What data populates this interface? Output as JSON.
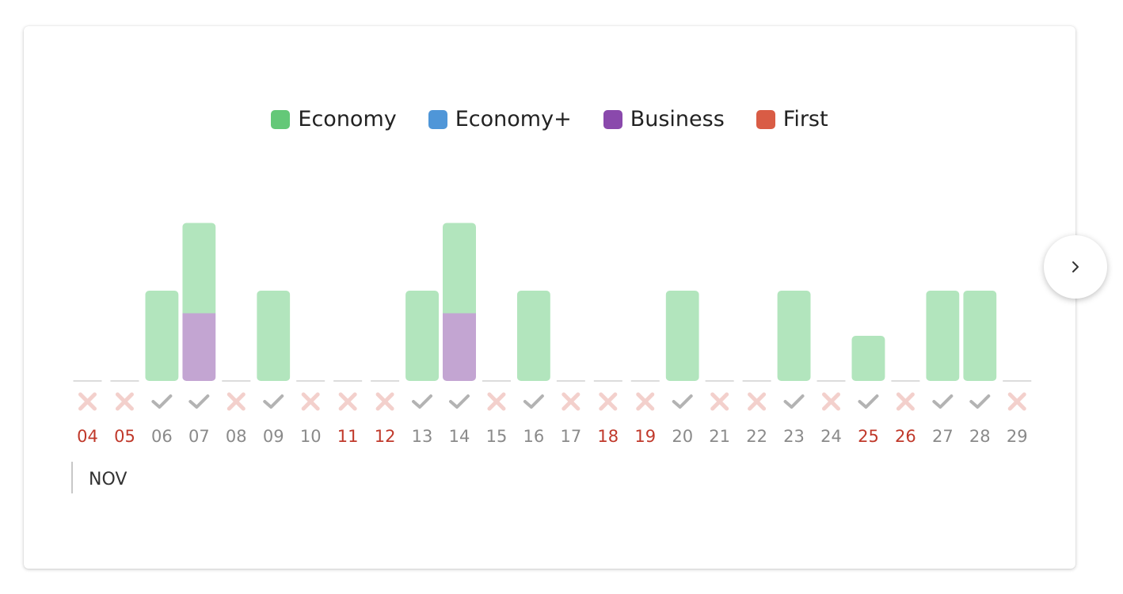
{
  "legend": [
    {
      "label": "Economy",
      "color": "#64c878"
    },
    {
      "label": "Economy+",
      "color": "#4f96d8"
    },
    {
      "label": "Business",
      "color": "#8a49ac"
    },
    {
      "label": "First",
      "color": "#d95c45"
    }
  ],
  "chart_data": {
    "type": "bar",
    "stacked": true,
    "categories": [
      "04",
      "05",
      "06",
      "07",
      "08",
      "09",
      "10",
      "11",
      "12",
      "13",
      "14",
      "15",
      "16",
      "17",
      "18",
      "19",
      "20",
      "21",
      "22",
      "23",
      "24",
      "25",
      "26",
      "27",
      "28",
      "29"
    ],
    "series": [
      {
        "name": "Economy",
        "color": "#b2e5bd",
        "values": [
          0,
          0,
          4,
          4,
          0,
          4,
          0,
          0,
          0,
          4,
          4,
          0,
          4,
          0,
          0,
          0,
          4,
          0,
          0,
          4,
          0,
          2,
          0,
          4,
          4,
          0
        ]
      },
      {
        "name": "Economy+",
        "color": "#4f96d8",
        "values": [
          0,
          0,
          0,
          0,
          0,
          0,
          0,
          0,
          0,
          0,
          0,
          0,
          0,
          0,
          0,
          0,
          0,
          0,
          0,
          0,
          0,
          0,
          0,
          0,
          0,
          0
        ]
      },
      {
        "name": "Business",
        "color": "#c3a5d2",
        "values": [
          0,
          0,
          0,
          3,
          0,
          0,
          0,
          0,
          0,
          0,
          3,
          0,
          0,
          0,
          0,
          0,
          0,
          0,
          0,
          0,
          0,
          0,
          0,
          0,
          0,
          0
        ]
      },
      {
        "name": "First",
        "color": "#d95c45",
        "values": [
          0,
          0,
          0,
          0,
          0,
          0,
          0,
          0,
          0,
          0,
          0,
          0,
          0,
          0,
          0,
          0,
          0,
          0,
          0,
          0,
          0,
          0,
          0,
          0,
          0,
          0
        ]
      }
    ],
    "availability": [
      false,
      false,
      true,
      true,
      false,
      true,
      false,
      false,
      false,
      true,
      true,
      false,
      true,
      false,
      false,
      false,
      true,
      false,
      false,
      true,
      false,
      true,
      false,
      true,
      true,
      false
    ],
    "weekend": [
      true,
      true,
      false,
      false,
      false,
      false,
      false,
      true,
      true,
      false,
      false,
      false,
      false,
      false,
      true,
      true,
      false,
      false,
      false,
      false,
      false,
      true,
      true,
      false,
      false,
      false
    ],
    "month": "NOV"
  },
  "nav": {
    "next_icon": "chevron-right-icon"
  }
}
